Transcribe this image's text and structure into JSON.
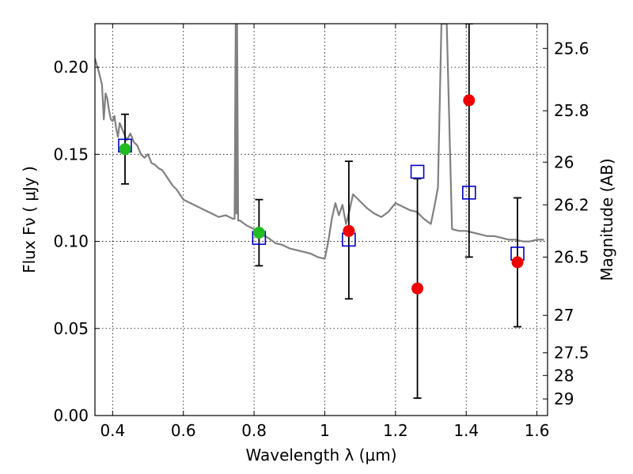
{
  "chart_data": {
    "type": "scatter",
    "title": "",
    "xlabel": "Wavelength  λ (μm)",
    "ylabel": "Flux  Fν ( μJy )",
    "ylabel_right": "Magnitude (AB)",
    "xlim": [
      0.35,
      1.63
    ],
    "ylim": [
      0.0,
      0.225
    ],
    "grid": true,
    "x_ticks": [
      0.4,
      0.6,
      0.8,
      1.0,
      1.2,
      1.4,
      1.6
    ],
    "x_tick_labels": [
      "0.4",
      "0.6",
      "0.8",
      "1",
      "1.2",
      "1.4",
      "1.6"
    ],
    "y_ticks": [
      0.0,
      0.05,
      0.1,
      0.15,
      0.2
    ],
    "y_tick_labels": [
      "0.00",
      "0.05",
      "0.10",
      "0.15",
      "0.20"
    ],
    "right_ticks": [
      {
        "flux": 0.2108,
        "label": "25.6"
      },
      {
        "flux": 0.175,
        "label": "25.8"
      },
      {
        "flux": 0.1455,
        "label": "26"
      },
      {
        "flux": 0.121,
        "label": "26.2"
      },
      {
        "flux": 0.091,
        "label": "26.5"
      },
      {
        "flux": 0.0575,
        "label": "27"
      },
      {
        "flux": 0.036,
        "label": "27.5"
      },
      {
        "flux": 0.023,
        "label": "28"
      },
      {
        "flux": 0.0095,
        "label": "29"
      }
    ],
    "series": [
      {
        "kind": "line",
        "color": "#808080",
        "x": [
          0.35,
          0.36,
          0.37,
          0.375,
          0.38,
          0.385,
          0.39,
          0.395,
          0.4,
          0.405,
          0.41,
          0.415,
          0.42,
          0.43,
          0.44,
          0.45,
          0.46,
          0.47,
          0.48,
          0.49,
          0.5,
          0.51,
          0.52,
          0.53,
          0.54,
          0.55,
          0.56,
          0.57,
          0.58,
          0.59,
          0.6,
          0.62,
          0.64,
          0.66,
          0.68,
          0.7,
          0.72,
          0.74,
          0.745,
          0.748,
          0.75,
          0.752,
          0.755,
          0.76,
          0.78,
          0.8,
          0.82,
          0.84,
          0.86,
          0.88,
          0.9,
          0.92,
          0.94,
          0.96,
          0.98,
          1.0,
          1.01,
          1.02,
          1.03,
          1.04,
          1.05,
          1.06,
          1.07,
          1.08,
          1.09,
          1.1,
          1.12,
          1.14,
          1.16,
          1.18,
          1.2,
          1.22,
          1.24,
          1.26,
          1.28,
          1.3,
          1.31,
          1.32,
          1.33,
          1.335,
          1.34,
          1.345,
          1.36,
          1.38,
          1.4,
          1.42,
          1.44,
          1.46,
          1.48,
          1.5,
          1.52,
          1.54,
          1.56,
          1.58,
          1.6,
          1.62
        ],
        "y": [
          0.205,
          0.198,
          0.19,
          0.17,
          0.185,
          0.182,
          0.175,
          0.17,
          0.169,
          0.172,
          0.165,
          0.16,
          0.168,
          0.163,
          0.158,
          0.162,
          0.157,
          0.155,
          0.15,
          0.148,
          0.15,
          0.145,
          0.144,
          0.142,
          0.141,
          0.138,
          0.135,
          0.132,
          0.13,
          0.127,
          0.124,
          0.122,
          0.12,
          0.118,
          0.116,
          0.114,
          0.115,
          0.113,
          0.113,
          0.225,
          0.116,
          0.225,
          0.112,
          0.112,
          0.109,
          0.107,
          0.104,
          0.102,
          0.099,
          0.098,
          0.096,
          0.095,
          0.094,
          0.093,
          0.091,
          0.09,
          0.1,
          0.113,
          0.122,
          0.115,
          0.121,
          0.11,
          0.118,
          0.127,
          0.125,
          0.123,
          0.119,
          0.116,
          0.114,
          0.117,
          0.122,
          0.12,
          0.118,
          0.117,
          0.113,
          0.11,
          0.12,
          0.131,
          0.225,
          0.225,
          0.225,
          0.225,
          0.107,
          0.106,
          0.106,
          0.105,
          0.104,
          0.103,
          0.103,
          0.102,
          0.101,
          0.101,
          0.1,
          0.1,
          0.101,
          0.101
        ]
      },
      {
        "kind": "errorbar",
        "color": "#000000",
        "points": [
          {
            "x": 0.435,
            "lo": 0.133,
            "hi": 0.173
          },
          {
            "x": 0.814,
            "lo": 0.086,
            "hi": 0.124
          },
          {
            "x": 1.068,
            "lo": 0.067,
            "hi": 0.146
          },
          {
            "x": 1.262,
            "lo": 0.01,
            "hi": 0.136
          },
          {
            "x": 1.408,
            "lo": 0.091,
            "hi": 0.225
          },
          {
            "x": 1.545,
            "lo": 0.051,
            "hi": 0.125
          }
        ]
      },
      {
        "kind": "squares",
        "color": "#0000cc",
        "points": [
          {
            "x": 0.435,
            "y": 0.155
          },
          {
            "x": 0.814,
            "y": 0.102
          },
          {
            "x": 1.068,
            "y": 0.101
          },
          {
            "x": 1.262,
            "y": 0.14
          },
          {
            "x": 1.408,
            "y": 0.128
          },
          {
            "x": 1.545,
            "y": 0.093
          }
        ]
      },
      {
        "kind": "dots",
        "color": "#22bb22",
        "points": [
          {
            "x": 0.435,
            "y": 0.153
          },
          {
            "x": 0.814,
            "y": 0.105
          }
        ]
      },
      {
        "kind": "dots",
        "color": "#ee0000",
        "points": [
          {
            "x": 1.068,
            "y": 0.106
          },
          {
            "x": 1.262,
            "y": 0.073
          },
          {
            "x": 1.408,
            "y": 0.181
          },
          {
            "x": 1.545,
            "y": 0.088
          }
        ]
      }
    ]
  }
}
